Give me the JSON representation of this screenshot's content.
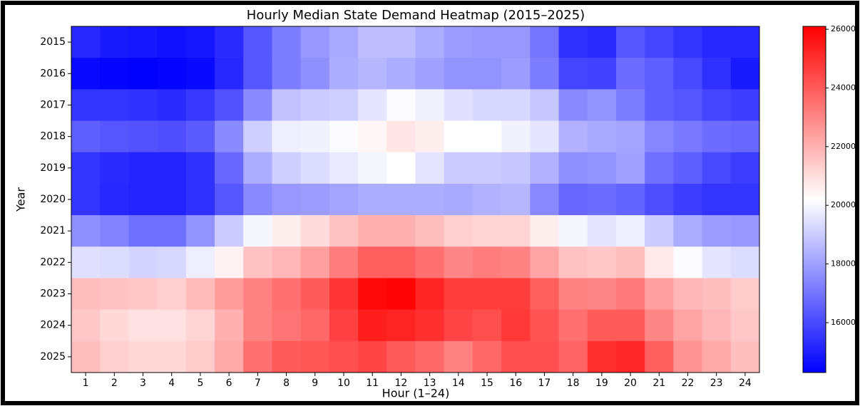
{
  "chart_data": {
    "type": "heatmap",
    "title": "Hourly Median State Demand Heatmap (2015–2025)",
    "x_label": "Hour (1–24)",
    "y_label": "Year",
    "x": [
      1,
      2,
      3,
      4,
      5,
      6,
      7,
      8,
      9,
      10,
      11,
      12,
      13,
      14,
      15,
      16,
      17,
      18,
      19,
      20,
      21,
      22,
      23,
      24
    ],
    "y": [
      "2015",
      "2016",
      "2017",
      "2018",
      "2019",
      "2020",
      "2021",
      "2022",
      "2023",
      "2024",
      "2025"
    ],
    "colormap": "bwr",
    "clim": [
      14300,
      26100
    ],
    "colorbar_ticks": [
      16000,
      18000,
      20000,
      22000,
      24000,
      26000
    ],
    "values": [
      [
        15200,
        14900,
        14800,
        14700,
        14800,
        15300,
        16300,
        17200,
        17800,
        18200,
        18700,
        18700,
        18300,
        17900,
        17800,
        17800,
        17000,
        15400,
        15300,
        16300,
        15900,
        15500,
        15200,
        15200
      ],
      [
        14500,
        14400,
        14300,
        14400,
        14500,
        15200,
        16300,
        17200,
        17600,
        18300,
        18500,
        18300,
        18000,
        17700,
        17700,
        17900,
        17200,
        15900,
        15800,
        16800,
        16500,
        16000,
        15400,
        14900
      ],
      [
        15500,
        15500,
        15400,
        15300,
        15600,
        16200,
        17500,
        18800,
        19000,
        19100,
        19600,
        20100,
        19900,
        19500,
        19300,
        19300,
        18900,
        17500,
        17700,
        17200,
        16500,
        16300,
        15900,
        15700
      ],
      [
        16500,
        16300,
        16200,
        16100,
        16400,
        17500,
        19100,
        19800,
        19900,
        20100,
        20400,
        20800,
        20600,
        20200,
        20200,
        19900,
        19600,
        18400,
        18200,
        18100,
        17400,
        17100,
        16800,
        16700
      ],
      [
        15500,
        15300,
        15100,
        15100,
        15400,
        16700,
        18300,
        19100,
        19400,
        19700,
        20000,
        20200,
        19600,
        19000,
        19000,
        18900,
        18400,
        17600,
        17700,
        18000,
        16900,
        16500,
        16000,
        15700
      ],
      [
        15500,
        15200,
        15100,
        15100,
        15400,
        16300,
        17500,
        17800,
        17900,
        18100,
        18300,
        18300,
        18300,
        18200,
        18400,
        18500,
        17500,
        16700,
        16800,
        16600,
        16100,
        15700,
        15500,
        15500
      ],
      [
        17600,
        17300,
        16900,
        16900,
        17700,
        19000,
        20000,
        20600,
        21000,
        21600,
        22000,
        22000,
        21700,
        21300,
        21200,
        21200,
        20600,
        20000,
        19600,
        19800,
        19000,
        18300,
        17900,
        17800
      ],
      [
        19500,
        19400,
        19200,
        19300,
        19800,
        20500,
        21600,
        21900,
        22400,
        23200,
        23900,
        23900,
        23500,
        23000,
        23200,
        23100,
        22300,
        21600,
        21500,
        21700,
        20700,
        20100,
        19600,
        19400
      ],
      [
        21700,
        21600,
        21500,
        21300,
        21800,
        22500,
        23100,
        23500,
        24000,
        24900,
        25900,
        26000,
        25300,
        24700,
        24700,
        24700,
        23900,
        23100,
        23000,
        23300,
        22400,
        21900,
        21700,
        21400
      ],
      [
        21500,
        21100,
        20900,
        20900,
        21200,
        22000,
        23100,
        23400,
        23700,
        24600,
        25400,
        25300,
        25000,
        24500,
        24300,
        24800,
        24200,
        23500,
        24000,
        24000,
        23000,
        22300,
        21900,
        21500
      ],
      [
        21700,
        21300,
        21100,
        21100,
        21400,
        22200,
        23500,
        24000,
        24100,
        24300,
        24500,
        24000,
        23700,
        23100,
        23700,
        24300,
        24300,
        23800,
        25000,
        25200,
        23900,
        22700,
        22200,
        21700
      ]
    ]
  }
}
